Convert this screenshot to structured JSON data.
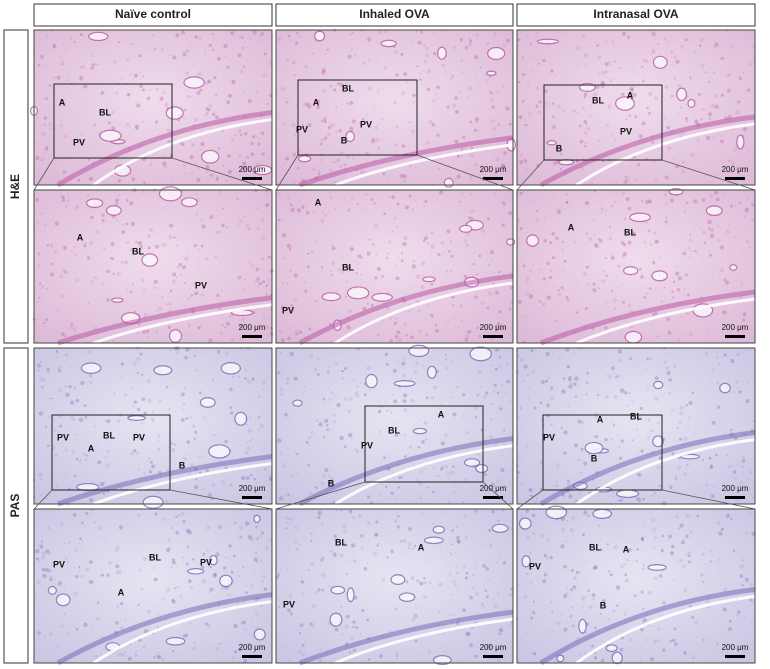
{
  "columns": [
    "Naïve control",
    "Inhaled OVA",
    "Intranasal OVA"
  ],
  "stains": [
    {
      "label": "H&E",
      "panels": [
        {
          "labels": [
            "A",
            "BL",
            "PV"
          ],
          "scale_bar": "200 μm"
        },
        {
          "labels": [
            "BL",
            "A",
            "PV",
            "PV",
            "B"
          ],
          "scale_bar": "200 μm"
        },
        {
          "labels": [
            "BL",
            "A",
            "PV",
            "B"
          ],
          "scale_bar": "200 μm"
        },
        {
          "labels": [
            "A",
            "BL",
            "PV"
          ],
          "scale_bar": "200 μm"
        },
        {
          "labels": [
            "A",
            "BL",
            "PV"
          ],
          "scale_bar": "200 μm"
        },
        {
          "labels": [
            "A",
            "BL"
          ],
          "scale_bar": "200 μm"
        }
      ]
    },
    {
      "label": "PAS",
      "panels": [
        {
          "labels": [
            "PV",
            "BL",
            "PV",
            "A",
            "B"
          ],
          "scale_bar": "200 μm"
        },
        {
          "labels": [
            "A",
            "BL",
            "PV",
            "B"
          ],
          "scale_bar": "200 μm"
        },
        {
          "labels": [
            "A",
            "BL",
            "PV",
            "B"
          ],
          "scale_bar": "200 μm"
        },
        {
          "labels": [
            "PV",
            "BL",
            "PV",
            "A"
          ],
          "scale_bar": "200 μm"
        },
        {
          "labels": [
            "BL",
            "A",
            "PV"
          ],
          "scale_bar": "200 μm"
        },
        {
          "labels": [
            "PV",
            "BL",
            "A",
            "B"
          ],
          "scale_bar": "200 μm"
        }
      ]
    }
  ]
}
